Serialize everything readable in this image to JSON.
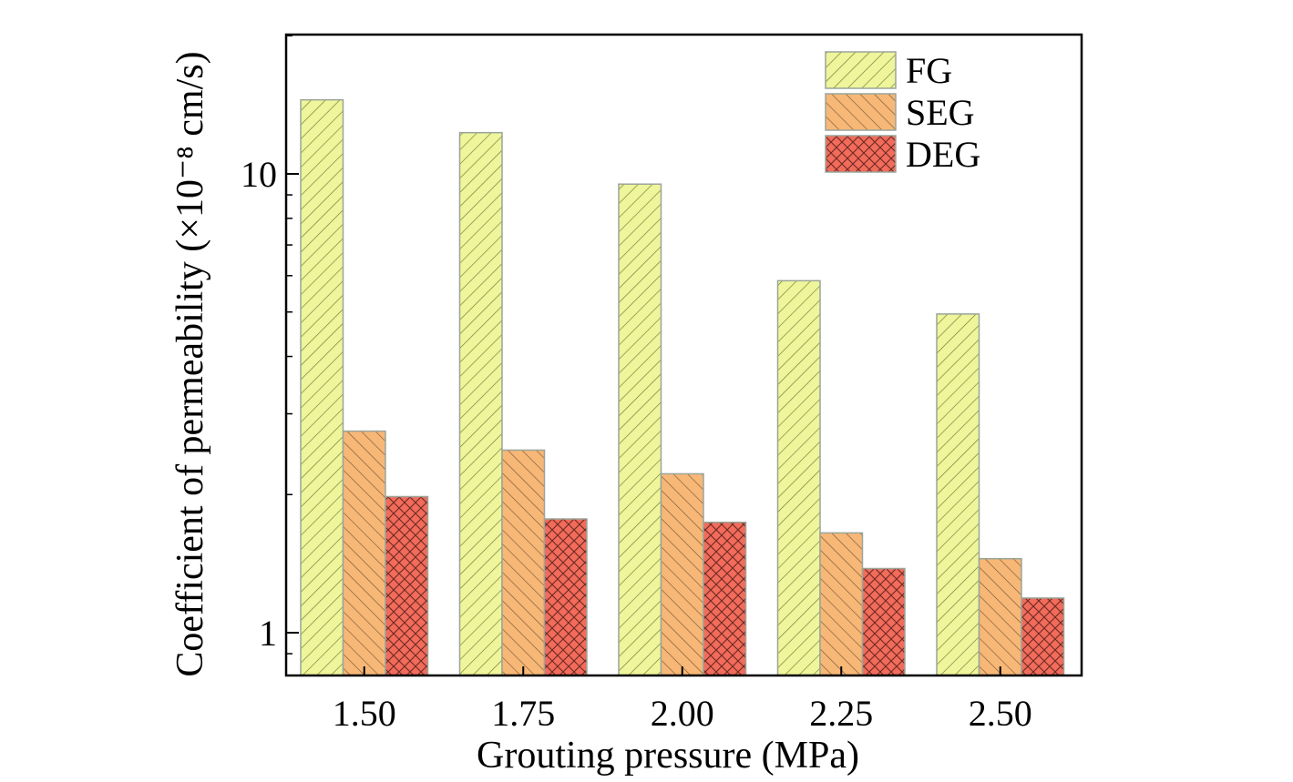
{
  "chart_data": {
    "type": "bar",
    "scale": "log",
    "categories": [
      "1.50",
      "1.75",
      "2.00",
      "2.25",
      "2.50"
    ],
    "series": [
      {
        "name": "FG",
        "values": [
          14.5,
          12.3,
          9.5,
          5.85,
          4.95
        ],
        "color": "#eef59a",
        "pattern": "forward-hatch"
      },
      {
        "name": "SEG",
        "values": [
          2.75,
          2.5,
          2.22,
          1.65,
          1.45
        ],
        "color": "#f7b777",
        "pattern": "back-hatch"
      },
      {
        "name": "DEG",
        "values": [
          1.98,
          1.77,
          1.74,
          1.38,
          1.19
        ],
        "color": "#f26b5b",
        "pattern": "crosshatch"
      }
    ],
    "xlabel": "Grouting pressure (MPa)",
    "ylabel": "Coefficient of permeability (×10⁻⁸ cm/s)",
    "ylim": [
      0.8,
      20
    ],
    "y_tick_labels": [
      "1",
      "10"
    ],
    "y_ticks": [
      1,
      10
    ],
    "legend_position": "top-right",
    "grid": false
  }
}
